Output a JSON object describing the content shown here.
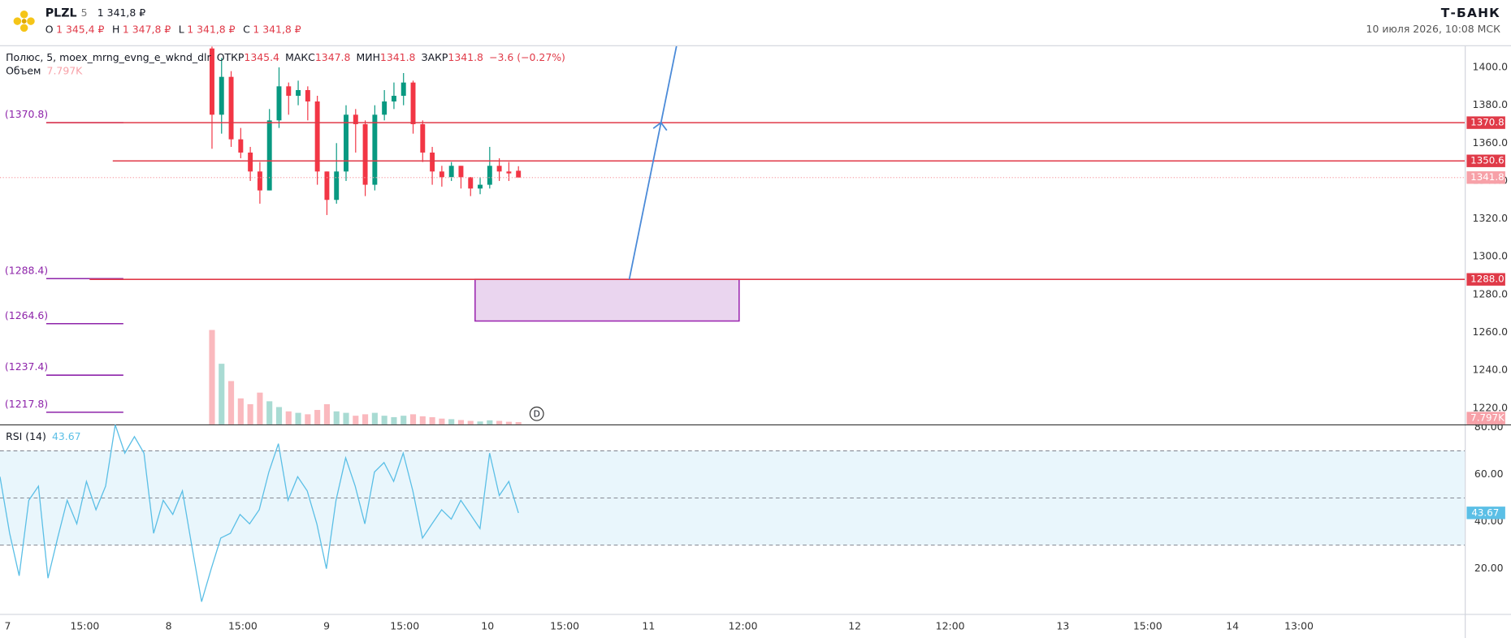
{
  "header": {
    "ticker": "PLZL",
    "interval": "5",
    "price": "1 341,8 ₽",
    "ohlc": [
      "O",
      "1 345,4 ₽",
      "H",
      "1 347,8 ₽",
      "L",
      "1 341,8 ₽",
      "C",
      "1 341,8 ₽"
    ],
    "brand": "Т-БАНК",
    "date": "10 июля 2026, 10:08 МСК"
  },
  "chart_data": {
    "type": "candlestick",
    "legend": {
      "name": "Полюс, 5, moex_mrng_evng_e_wknd_dlr",
      "labels": [
        "ОТКР",
        "МАКС",
        "МИН",
        "ЗАКР"
      ],
      "change": "−3.6 (−0.27%)",
      "volume_title": "Объем",
      "volume_label": "7.797K"
    },
    "open": [
      1410,
      1375,
      1395,
      1362,
      1355,
      1345,
      1335,
      1372,
      1390,
      1385,
      1388,
      1382,
      1345,
      1330,
      1345,
      1375,
      1370,
      1338,
      1375,
      1382,
      1385,
      1392,
      1370,
      1355,
      1345,
      1342,
      1348,
      1342,
      1336,
      1338,
      1348,
      1345,
      1345.4
    ],
    "high": [
      1411,
      1405,
      1398,
      1368,
      1358,
      1350,
      1378,
      1400,
      1392,
      1393,
      1390,
      1385,
      1345,
      1360,
      1380,
      1378,
      1372,
      1380,
      1388,
      1392,
      1397,
      1393,
      1372,
      1358,
      1348,
      1350,
      1348,
      1342,
      1342,
      1358,
      1352,
      1350,
      1347.8
    ],
    "low": [
      1357,
      1365,
      1358,
      1352,
      1340,
      1328,
      1335,
      1368,
      1375,
      1380,
      1372,
      1338,
      1322,
      1328,
      1340,
      1355,
      1332,
      1335,
      1372,
      1378,
      1380,
      1365,
      1350,
      1338,
      1337,
      1340,
      1336,
      1332,
      1333,
      1336,
      1340,
      1340,
      1341.8
    ],
    "close": [
      1375,
      1395,
      1362,
      1355,
      1345,
      1335,
      1372,
      1390,
      1385,
      1388,
      1382,
      1345,
      1330,
      1345,
      1375,
      1370,
      1338,
      1375,
      1382,
      1385,
      1392,
      1370,
      1355,
      1345,
      1342,
      1348,
      1342,
      1336,
      1338,
      1348,
      1345,
      1344,
      1341.8
    ],
    "volume": [
      327000,
      210000,
      150000,
      90000,
      70000,
      110000,
      80000,
      60000,
      45000,
      40000,
      35000,
      50000,
      70000,
      45000,
      40000,
      30000,
      35000,
      40000,
      30000,
      25000,
      30000,
      35000,
      28000,
      25000,
      20000,
      18000,
      15000,
      12000,
      10000,
      14000,
      12000,
      9000,
      7797
    ],
    "volume_lim": [
      0,
      400000
    ],
    "up_color": "#089981",
    "down_color": "#f23645",
    "ylim": [
      1211.4,
      1411.2
    ],
    "yticks": [
      {
        "value": 1220,
        "label": "1220.0"
      },
      {
        "value": 1240,
        "label": "1240.0"
      },
      {
        "value": 1260,
        "label": "1260.0"
      },
      {
        "value": 1280,
        "label": "1280.0"
      },
      {
        "value": 1300,
        "label": "1300.0"
      },
      {
        "value": 1320,
        "label": "1320.0"
      },
      {
        "value": 1340,
        "label": "1340.0"
      },
      {
        "value": 1360,
        "label": "1360.0"
      },
      {
        "value": 1380,
        "label": "1380.0"
      },
      {
        "value": 1400,
        "label": "1400.0"
      }
    ],
    "levels": [
      1370.8,
      1350.6,
      {
        "value": 1288,
        "label": "1288.0"
      }
    ],
    "level_color": "#e03a48",
    "pivots": [
      {
        "value": 1370.8,
        "label": "(1370.8)"
      },
      {
        "value": 1288.4,
        "label": "(1288.4)"
      },
      {
        "value": 1264.6,
        "label": "(1264.6)"
      },
      {
        "value": 1237.4,
        "label": "(1237.4)"
      },
      {
        "value": 1217.8,
        "label": "(1217.8)"
      }
    ],
    "pivot_color": "#8e24aa",
    "zone": [
      1266,
      1288
    ],
    "arrow": [
      1288,
      1411.2
    ],
    "arrow_color": "#4a8ad8",
    "marker": "D",
    "xticks": [
      "7",
      "15:00",
      "8",
      "15:00",
      "9",
      "15:00",
      "10",
      "15:00",
      "11",
      "12:00",
      "12",
      "12:00",
      "13",
      "15:00",
      "14",
      "13:00"
    ],
    "rsi": {
      "title": "RSI (14)",
      "color": "#5bbfe6",
      "values": [
        59,
        35,
        17,
        49,
        55,
        16,
        33,
        49,
        39,
        57,
        45,
        55,
        81,
        69,
        76,
        69,
        35,
        49,
        43,
        53,
        29,
        6,
        20,
        33,
        35,
        43,
        39,
        45,
        61,
        73,
        49,
        59,
        53,
        39,
        20,
        49,
        67,
        55,
        39,
        61,
        65,
        57,
        69,
        53,
        33,
        39,
        45,
        41,
        49,
        43,
        37,
        69,
        51,
        57,
        43.67
      ],
      "ylim": [
        0.8,
        81.2
      ],
      "yticks": [
        {
          "value": 20,
          "label": "20.00"
        },
        {
          "value": 40,
          "label": "40.00"
        },
        {
          "value": 60,
          "label": "60.00"
        },
        {
          "value": 80,
          "label": "80.00"
        }
      ],
      "bands": [
        30,
        50,
        70
      ]
    }
  }
}
